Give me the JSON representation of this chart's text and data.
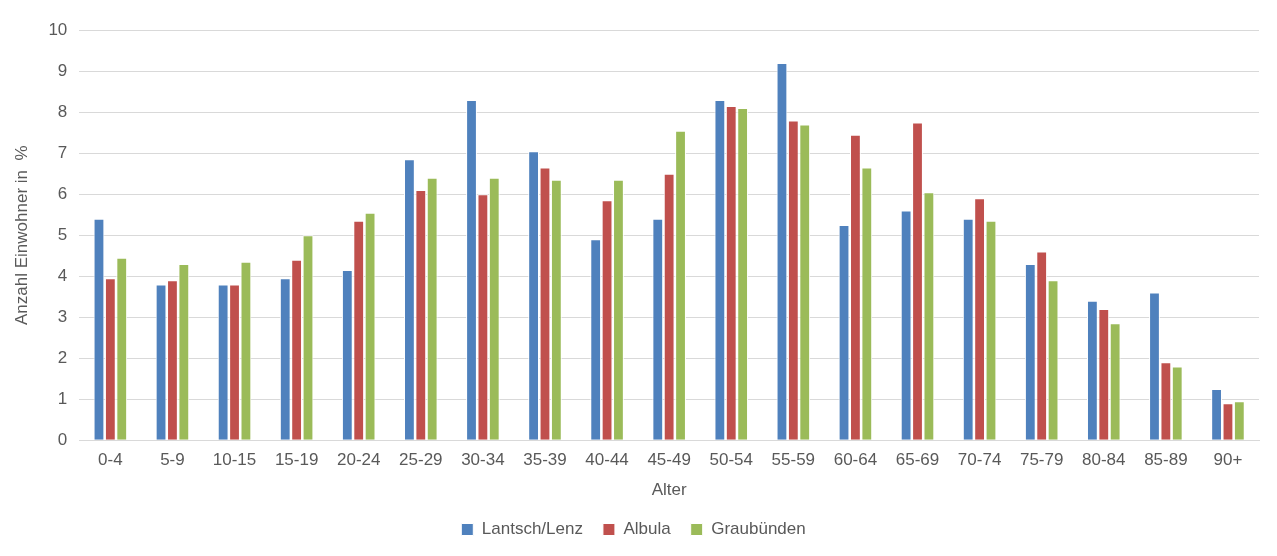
{
  "chart_data": {
    "type": "bar",
    "xlabel": "Alter",
    "ylabel": "Anzahl Einwohner in  %",
    "categories": [
      "0-4",
      "5-9",
      "10-15",
      "15-19",
      "20-24",
      "25-29",
      "30-34",
      "35-39",
      "40-44",
      "45-49",
      "50-54",
      "55-59",
      "60-64",
      "65-69",
      "70-74",
      "75-79",
      "80-84",
      "85-89",
      "90+"
    ],
    "series": [
      {
        "name": "Lantsch/Lenz",
        "color": "#4f81bd",
        "values": [
          5.4,
          3.8,
          3.8,
          3.95,
          4.15,
          6.85,
          8.3,
          7.05,
          4.9,
          5.4,
          8.3,
          9.2,
          5.25,
          5.6,
          5.4,
          4.3,
          3.4,
          3.6,
          1.25
        ]
      },
      {
        "name": "Albula",
        "color": "#c0504d",
        "values": [
          3.95,
          3.9,
          3.8,
          4.4,
          5.35,
          6.1,
          6.0,
          6.65,
          5.85,
          6.5,
          8.15,
          7.8,
          7.45,
          7.75,
          5.9,
          4.6,
          3.2,
          1.9,
          0.9
        ]
      },
      {
        "name": "Graubünden",
        "color": "#9bbb59",
        "values": [
          4.45,
          4.3,
          4.35,
          5.0,
          5.55,
          6.4,
          6.4,
          6.35,
          6.35,
          7.55,
          8.1,
          7.7,
          6.65,
          6.05,
          5.35,
          3.9,
          2.85,
          1.8,
          0.95
        ]
      }
    ],
    "ylim": [
      0,
      10
    ],
    "yticks": [
      0,
      1,
      2,
      3,
      4,
      5,
      6,
      7,
      8,
      9,
      10
    ],
    "grid": "y",
    "legend": "bottom"
  }
}
